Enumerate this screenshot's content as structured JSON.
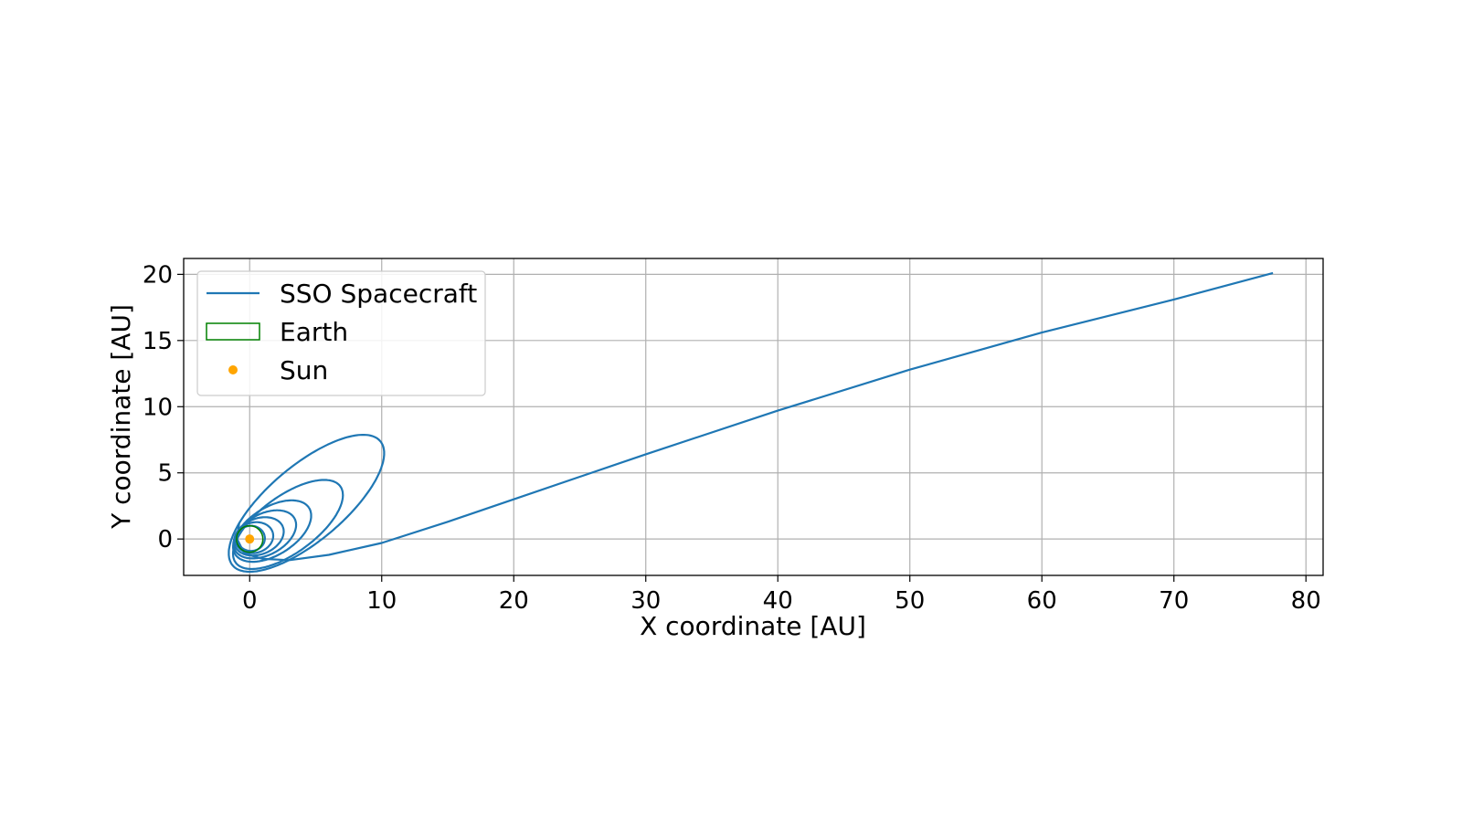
{
  "chart_data": {
    "type": "line",
    "title": "",
    "xlabel": "X coordinate [AU]",
    "ylabel": "Y coordinate [AU]",
    "xlim": [
      -5,
      81.3
    ],
    "ylim": [
      -2.75,
      21.2
    ],
    "xticks": [
      0,
      10,
      20,
      30,
      40,
      50,
      60,
      70,
      80
    ],
    "yticks": [
      0,
      5,
      10,
      15,
      20
    ],
    "grid": true,
    "legend": {
      "placement": "upper-left",
      "entries": [
        {
          "label": "SSO Spacecraft",
          "marker": "line",
          "color": "#1f77b4"
        },
        {
          "label": "Earth",
          "marker": "rectangle-outline",
          "color": "#008000"
        },
        {
          "label": "Sun",
          "marker": "dot",
          "color": "#ffa500"
        }
      ]
    },
    "series": [
      {
        "name": "SSO Spacecraft",
        "color": "#1f77b4",
        "kind": "trajectory",
        "loops": [
          {
            "center": [
              0.1,
              0.05
            ],
            "rx": 1.05,
            "ry": 0.95,
            "tilt": 0
          },
          {
            "center": [
              0.35,
              0.1
            ],
            "rx": 1.45,
            "ry": 1.15,
            "tilt": 15
          },
          {
            "center": [
              0.7,
              0.2
            ],
            "rx": 1.95,
            "ry": 1.35,
            "tilt": 22
          },
          {
            "center": [
              1.15,
              0.35
            ],
            "rx": 2.55,
            "ry": 1.55,
            "tilt": 28
          },
          {
            "center": [
              1.7,
              0.6
            ],
            "rx": 3.3,
            "ry": 1.8,
            "tilt": 32
          },
          {
            "center": [
              2.9,
              1.1
            ],
            "rx": 4.9,
            "ry": 2.15,
            "tilt": 36
          },
          {
            "center": [
              4.3,
              2.7
            ],
            "rx": 7.3,
            "ry": 2.85,
            "tilt": 40
          }
        ],
        "escape": [
          [
            -0.8,
            1.2
          ],
          [
            -0.95,
            0.0
          ],
          [
            -0.4,
            -1.1
          ],
          [
            1.0,
            -1.5
          ],
          [
            3.0,
            -1.6
          ],
          [
            6.0,
            -1.2
          ],
          [
            10.0,
            -0.3
          ],
          [
            15.0,
            1.3
          ],
          [
            20.0,
            3.0
          ],
          [
            30.0,
            6.4
          ],
          [
            40.0,
            9.7
          ],
          [
            50.0,
            12.8
          ],
          [
            60.0,
            15.6
          ],
          [
            70.0,
            18.1
          ],
          [
            77.5,
            20.1
          ]
        ]
      },
      {
        "name": "Earth",
        "color": "#008000",
        "kind": "orbit",
        "radius": 1.0
      },
      {
        "name": "Sun",
        "color": "#ffa500",
        "kind": "point",
        "x": 0,
        "y": 0
      }
    ]
  }
}
